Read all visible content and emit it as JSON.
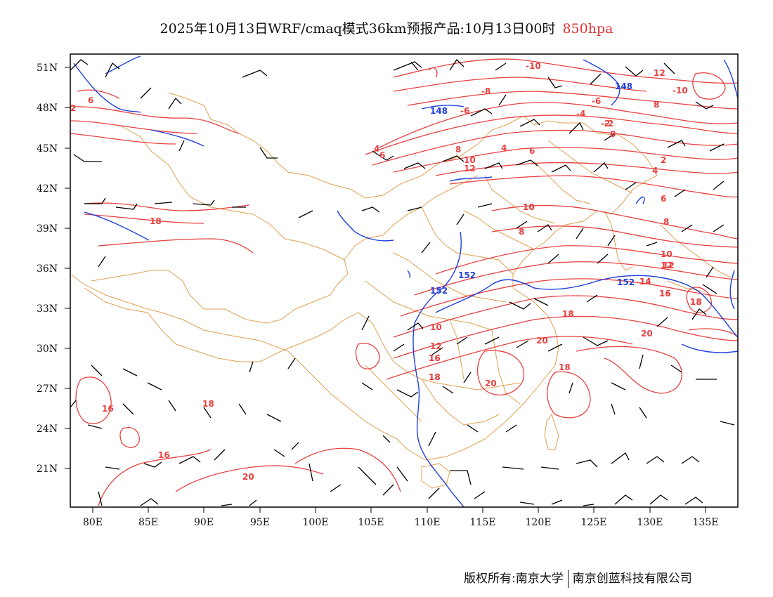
{
  "title": {
    "main": "2025年10月13日WRF/cmaq模式36km预报产品:10月13日00时",
    "level": "850hpa",
    "level_color": "#e03030"
  },
  "axes": {
    "lat_labels": [
      "51N",
      "48N",
      "45N",
      "42N",
      "39N",
      "36N",
      "33N",
      "30N",
      "27N",
      "24N",
      "21N"
    ],
    "lon_labels": [
      "80E",
      "85E",
      "90E",
      "95E",
      "100E",
      "105E",
      "110E",
      "115E",
      "120E",
      "125E",
      "130E",
      "135E"
    ]
  },
  "colors": {
    "temperature_contour": "#e84040",
    "geopotential_contour": "#1f3fe0",
    "boundary": "#e0a050",
    "wind_barb": "#000000",
    "frame": "#000000"
  },
  "temperature_labels": [
    "-10",
    "-8",
    "-6",
    "-4",
    "-2",
    "0",
    "2",
    "4",
    "6",
    "8",
    "10",
    "12",
    "14",
    "16",
    "18",
    "20",
    "-10",
    "12",
    "-6",
    "4",
    "6",
    "8",
    "10",
    "12",
    "16",
    "18",
    "18",
    "16",
    "18",
    "18",
    "20",
    "20",
    "20",
    "10",
    "12",
    "16",
    "18",
    "10",
    "8",
    "6",
    "4",
    "2",
    "-2",
    "6",
    "8",
    "10",
    "12",
    "14",
    "16",
    "18",
    "16",
    "18"
  ],
  "geopotential_labels": [
    "148",
    "148",
    "152",
    "152",
    "152"
  ],
  "footer": {
    "left": "版权所有:南京大学",
    "right": "南京创蓝科技有限公司"
  }
}
